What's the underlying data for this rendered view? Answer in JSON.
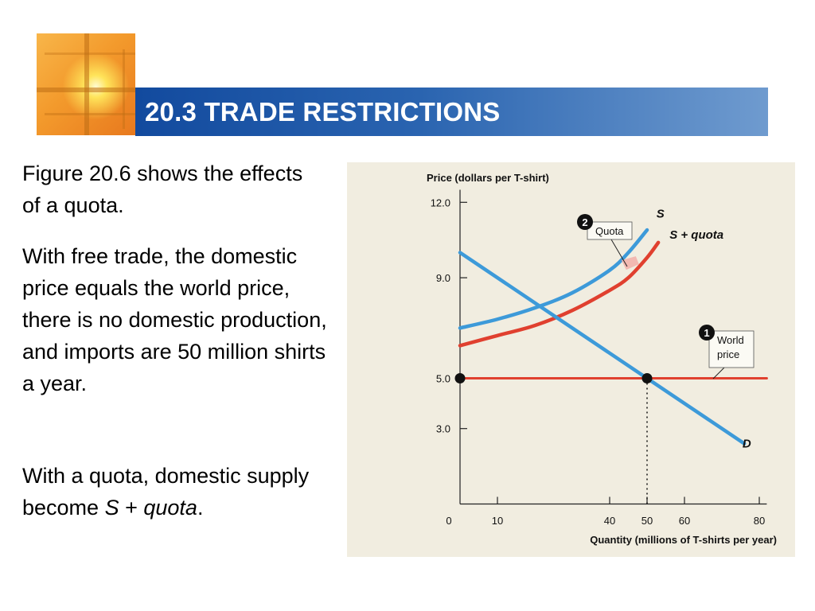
{
  "slide": {
    "title": "20.3 TRADE RESTRICTIONS",
    "paragraph_1": "Figure 20.6 shows the effects of a quota.",
    "paragraph_2": "With free trade, the domestic price equals the world price, there is no domestic production, and imports are 50 million shirts a year.",
    "paragraph_3_start": "With a quota, domestic supply become ",
    "paragraph_3_s": "S",
    "paragraph_3_plus": " + ",
    "paragraph_3_quota": "quota",
    "paragraph_3_end": "."
  },
  "chart_data": {
    "type": "line",
    "ylabel": "Price (dollars per T-shirt)",
    "xlabel": "Quantity (millions of T-shirts per year)",
    "x_ticks": [
      0,
      10,
      40,
      50,
      60,
      80
    ],
    "y_ticks": [
      3.0,
      5.0,
      9.0,
      12.0
    ],
    "x_tick_labels": [
      "0",
      "10",
      "40",
      "50",
      "60",
      "80"
    ],
    "y_tick_labels": [
      "3.0",
      "5.0",
      "9.0",
      "12.0"
    ],
    "xlim": [
      0,
      82
    ],
    "ylim": [
      0,
      12.5
    ],
    "series": [
      {
        "name": "S",
        "color": "#3d9ad9",
        "x": [
          0,
          10,
          20,
          30,
          40,
          45,
          50
        ],
        "y": [
          7.0,
          7.35,
          7.8,
          8.4,
          9.3,
          10.0,
          10.9
        ]
      },
      {
        "name": "S + quota",
        "color": "#e0402f",
        "x": [
          0,
          10,
          20,
          30,
          40,
          45,
          50,
          53
        ],
        "y": [
          6.3,
          6.7,
          7.1,
          7.7,
          8.5,
          9.0,
          9.8,
          10.4
        ]
      },
      {
        "name": "D",
        "color": "#3d9ad9",
        "x": [
          0,
          50,
          76
        ],
        "y": [
          10.0,
          5.0,
          2.4
        ]
      },
      {
        "name": "World price",
        "color": "#e0402f",
        "x": [
          0,
          82
        ],
        "y": [
          5.0,
          5.0
        ]
      }
    ],
    "annotations": [
      {
        "number": "1",
        "label_lines": [
          "World",
          "price"
        ]
      },
      {
        "number": "2",
        "label_lines": [
          "Quota"
        ]
      }
    ],
    "points": [
      {
        "x": 0,
        "y": 5.0
      },
      {
        "x": 50,
        "y": 5.0
      }
    ],
    "guide": {
      "x": 50,
      "y_from": 0,
      "y_to": 5.0
    },
    "colors": {
      "background": "#f1ede0",
      "supply": "#3d9ad9",
      "supply_quota": "#e0402f",
      "demand": "#3d9ad9",
      "world_price": "#e0402f"
    }
  }
}
